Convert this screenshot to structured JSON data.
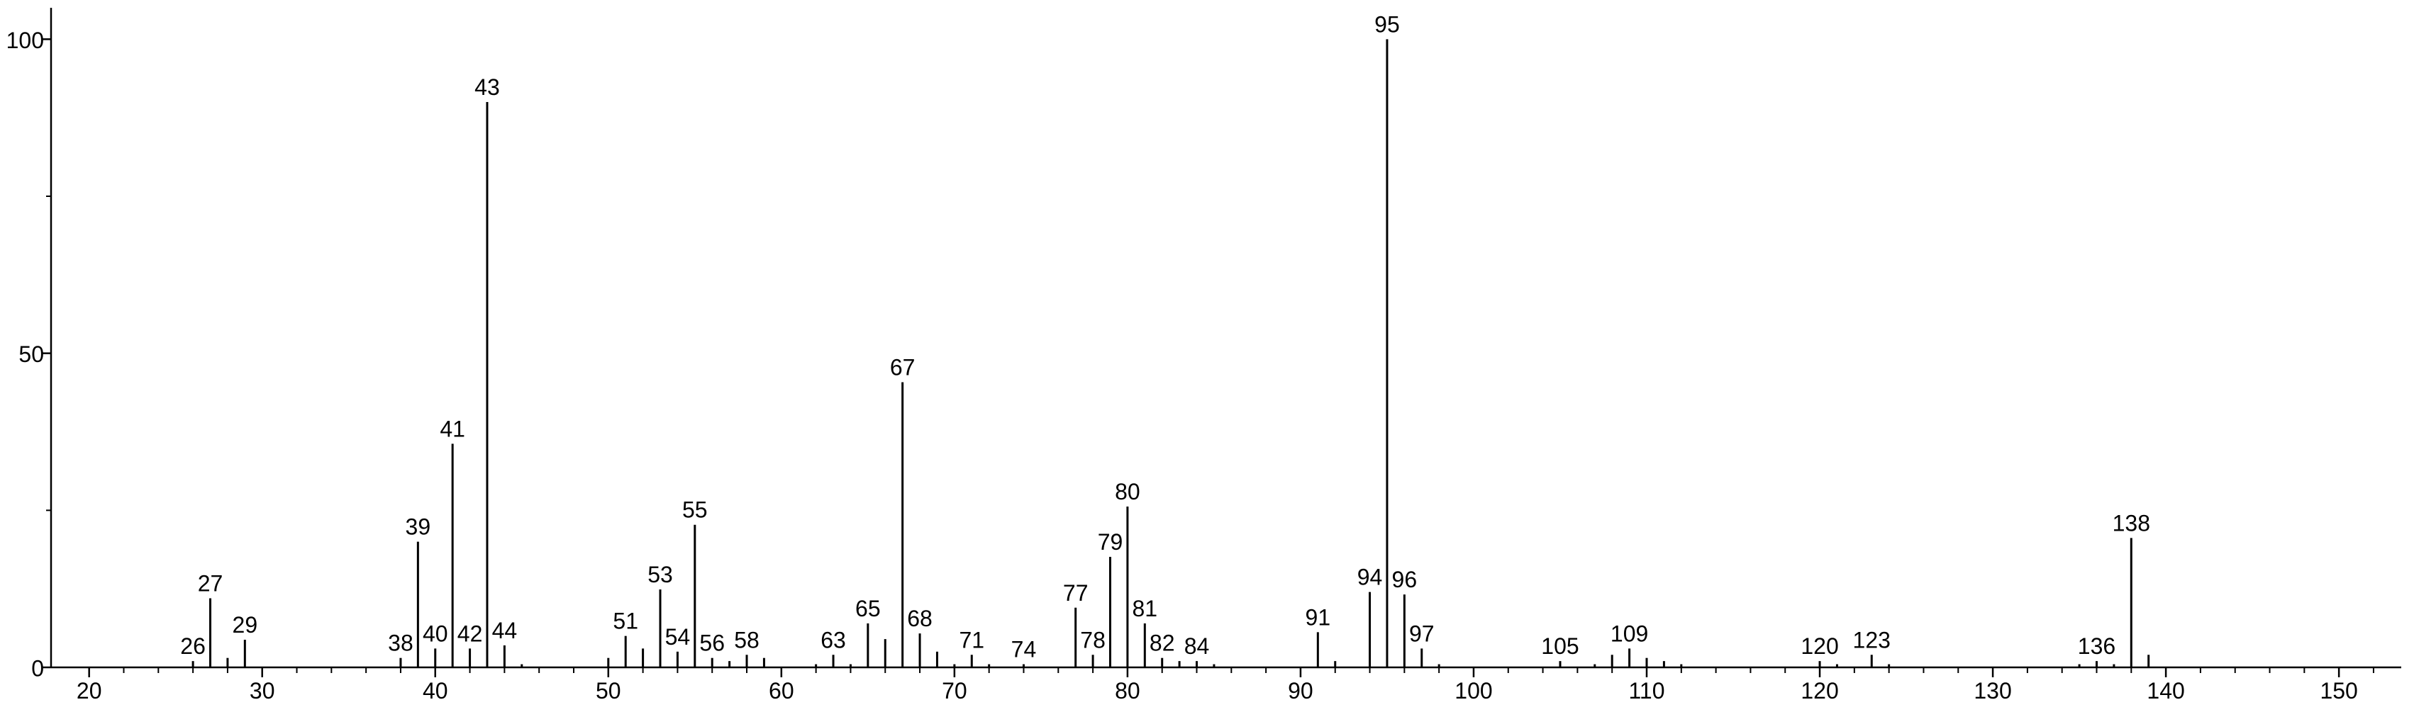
{
  "chart_data": {
    "type": "spectrum",
    "x": [
      26,
      27,
      28,
      29,
      38,
      39,
      40,
      41,
      42,
      43,
      44,
      45,
      50,
      51,
      52,
      53,
      54,
      55,
      56,
      57,
      58,
      59,
      62,
      63,
      64,
      65,
      66,
      67,
      68,
      69,
      70,
      71,
      72,
      74,
      77,
      78,
      79,
      80,
      81,
      82,
      83,
      84,
      85,
      91,
      92,
      94,
      95,
      96,
      97,
      98,
      105,
      107,
      108,
      109,
      110,
      111,
      112,
      120,
      121,
      123,
      124,
      135,
      136,
      137,
      138,
      139
    ],
    "values": [
      1,
      11,
      1.5,
      4.4,
      1.5,
      20,
      3,
      35.6,
      3,
      90,
      3.5,
      0.5,
      1.5,
      5,
      3,
      12.4,
      2.5,
      22.7,
      1.5,
      1,
      2,
      1.5,
      0.5,
      2,
      0.5,
      7,
      4.5,
      45.4,
      5.4,
      2.5,
      0.5,
      2,
      0.5,
      0.5,
      9.5,
      2,
      17.6,
      25.6,
      7,
      1.5,
      1,
      1,
      0.5,
      5.6,
      1,
      12,
      100,
      11.6,
      3,
      0.5,
      1,
      0.5,
      2,
      3,
      1.5,
      1,
      0.5,
      1,
      0.5,
      2,
      0.5,
      0.5,
      1,
      0.5,
      20.6,
      2
    ],
    "peak_labels": [
      26,
      27,
      29,
      38,
      39,
      40,
      41,
      42,
      43,
      44,
      51,
      53,
      54,
      55,
      56,
      58,
      63,
      65,
      67,
      68,
      71,
      74,
      77,
      78,
      79,
      80,
      81,
      82,
      84,
      91,
      94,
      95,
      96,
      97,
      105,
      109,
      120,
      123,
      136,
      138
    ],
    "color": "#000000",
    "xlim": [
      17.8,
      153.6
    ],
    "ylim": [
      0,
      105
    ],
    "xticks": [
      20,
      30,
      40,
      50,
      60,
      70,
      80,
      90,
      100,
      110,
      120,
      130,
      140,
      150
    ],
    "xminor": [
      22,
      24,
      26,
      28,
      32,
      34,
      36,
      38,
      42,
      44,
      46,
      48,
      52,
      54,
      56,
      58,
      62,
      64,
      66,
      68,
      72,
      74,
      76,
      78,
      82,
      84,
      86,
      88,
      92,
      94,
      96,
      98,
      102,
      104,
      106,
      108,
      112,
      114,
      116,
      118,
      122,
      124,
      126,
      128,
      132,
      134,
      136,
      138,
      142,
      144,
      146,
      148,
      152
    ],
    "yticks": [
      0,
      50,
      100
    ],
    "yminor": [
      25,
      75
    ]
  }
}
